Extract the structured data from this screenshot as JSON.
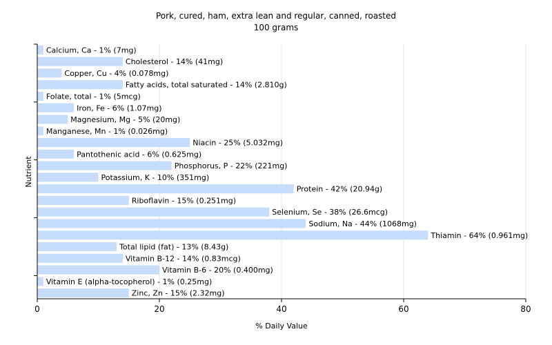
{
  "chart_data": {
    "type": "bar",
    "orientation": "horizontal",
    "title": "Pork, cured, ham, extra lean and regular, canned, roasted",
    "subtitle": "100 grams",
    "xlabel": "% Daily Value",
    "ylabel": "Nutrient",
    "xlim": [
      0,
      80
    ],
    "xticks": [
      0,
      20,
      40,
      60,
      80
    ],
    "grid": true,
    "bar_color": "#c6dcfb",
    "categories": [
      "Calcium, Ca",
      "Cholesterol",
      "Copper, Cu",
      "Fatty acids, total saturated",
      "Folate, total",
      "Iron, Fe",
      "Magnesium, Mg",
      "Manganese, Mn",
      "Niacin",
      "Pantothenic acid",
      "Phosphorus, P",
      "Potassium, K",
      "Protein",
      "Riboflavin",
      "Selenium, Se",
      "Sodium, Na",
      "Thiamin",
      "Total lipid (fat)",
      "Vitamin B-12",
      "Vitamin B-6",
      "Vitamin E (alpha-tocopherol)",
      "Zinc, Zn"
    ],
    "values": [
      1,
      14,
      4,
      14,
      1,
      6,
      5,
      1,
      25,
      6,
      22,
      10,
      42,
      15,
      38,
      44,
      64,
      13,
      14,
      20,
      1,
      15
    ],
    "labels": [
      "Calcium, Ca - 1% (7mg)",
      "Cholesterol - 14% (41mg)",
      "Copper, Cu - 4% (0.078mg)",
      "Fatty acids, total saturated - 14% (2.810g)",
      "Folate, total - 1% (5mcg)",
      "Iron, Fe - 6% (1.07mg)",
      "Magnesium, Mg - 5% (20mg)",
      "Manganese, Mn - 1% (0.026mg)",
      "Niacin - 25% (5.032mg)",
      "Pantothenic acid - 6% (0.625mg)",
      "Phosphorus, P - 22% (221mg)",
      "Potassium, K - 10% (351mg)",
      "Protein - 42% (20.94g)",
      "Riboflavin - 15% (0.251mg)",
      "Selenium, Se - 38% (26.6mcg)",
      "Sodium, Na - 44% (1068mg)",
      "Thiamin - 64% (0.961mg)",
      "Total lipid (fat) - 13% (8.43g)",
      "Vitamin B-12 - 14% (0.83mcg)",
      "Vitamin B-6 - 20% (0.400mg)",
      "Vitamin E (alpha-tocopherol) - 1% (0.25mg)",
      "Zinc, Zn - 15% (2.32mg)"
    ]
  }
}
